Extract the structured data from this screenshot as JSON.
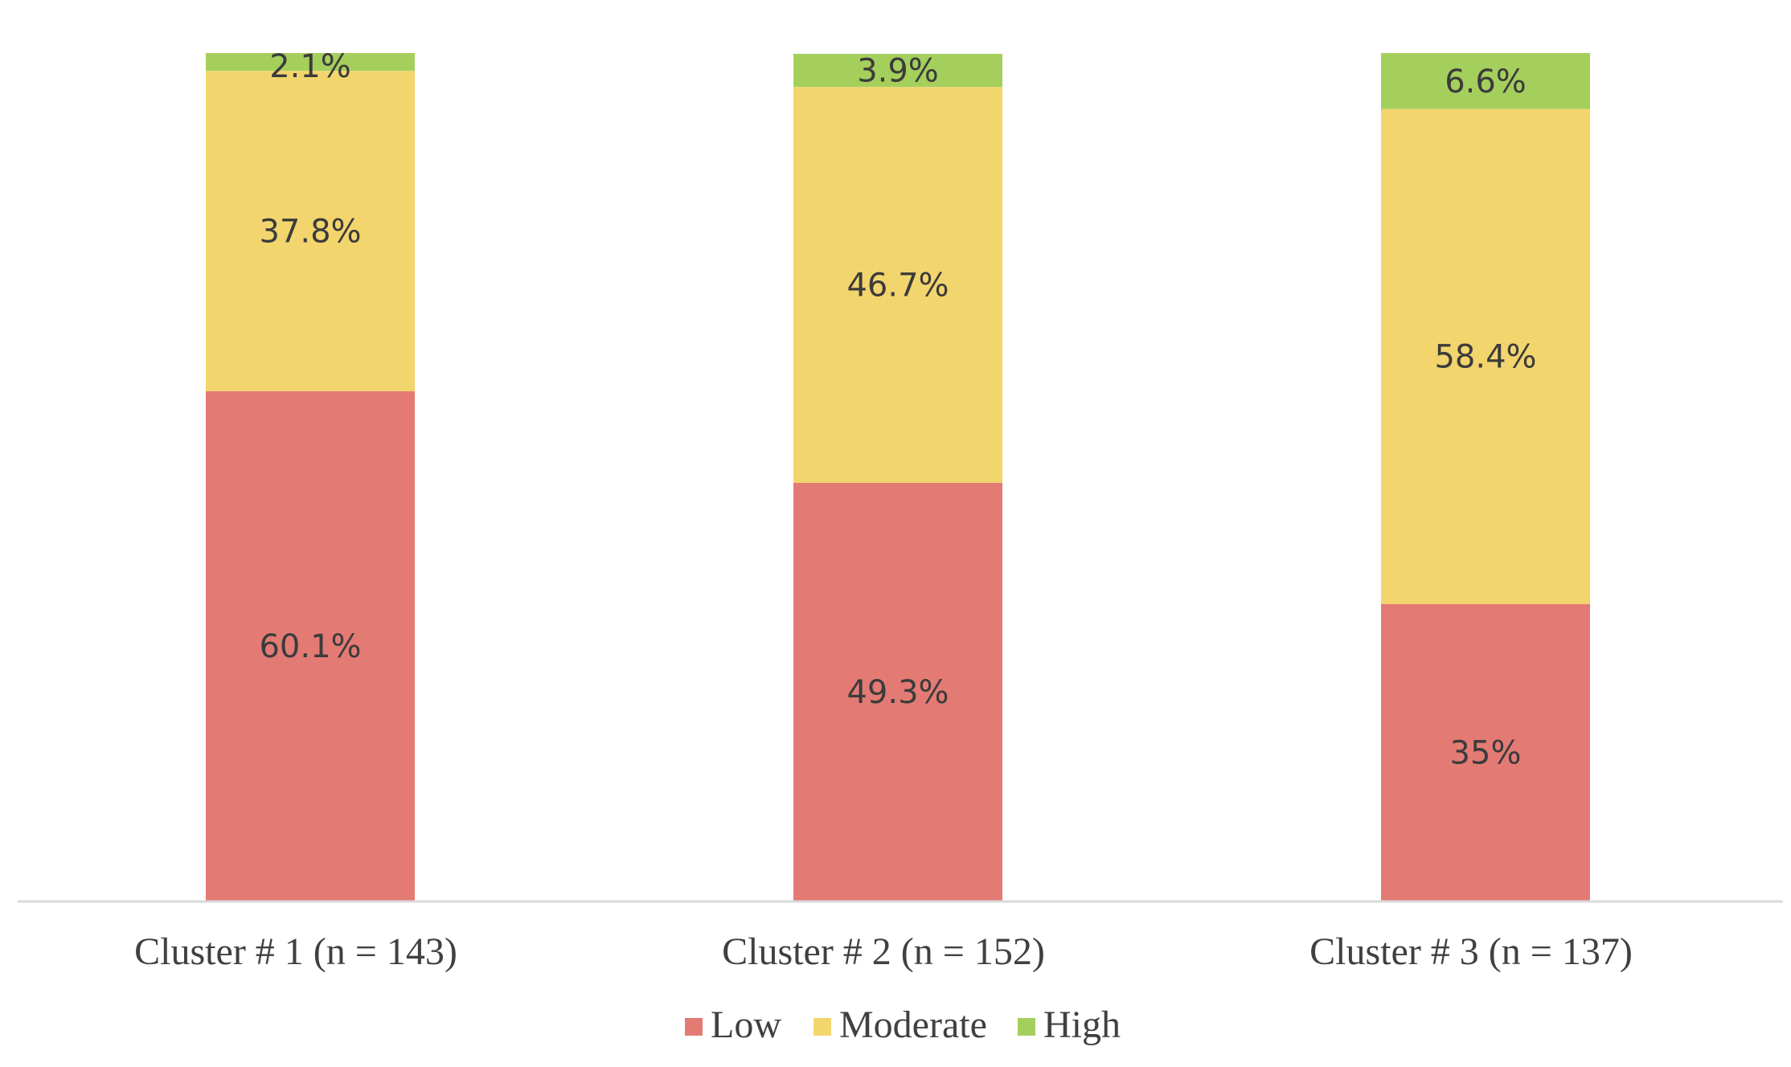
{
  "chart_data": {
    "type": "bar",
    "stacked": true,
    "categories": [
      "Cluster # 1 (n = 143)",
      "Cluster # 2 (n = 152)",
      "Cluster # 3 (n = 137)"
    ],
    "series": [
      {
        "name": "Low",
        "color": "#E37B74",
        "values": [
          60.1,
          49.3,
          35
        ],
        "labels": [
          "60.1%",
          "49.3%",
          "35%"
        ]
      },
      {
        "name": "Moderate",
        "color": "#F3D56E",
        "values": [
          37.8,
          46.7,
          58.4
        ],
        "labels": [
          "37.8%",
          "46.7%",
          "58.4%"
        ]
      },
      {
        "name": "High",
        "color": "#A5CF5C",
        "values": [
          2.1,
          3.9,
          6.6
        ],
        "labels": [
          "2.1%",
          "3.9%",
          "6.6%"
        ]
      }
    ],
    "ylim": [
      0,
      100
    ],
    "grid": false,
    "legend": "bottom-center",
    "axis_color": "#d9d9d9"
  }
}
